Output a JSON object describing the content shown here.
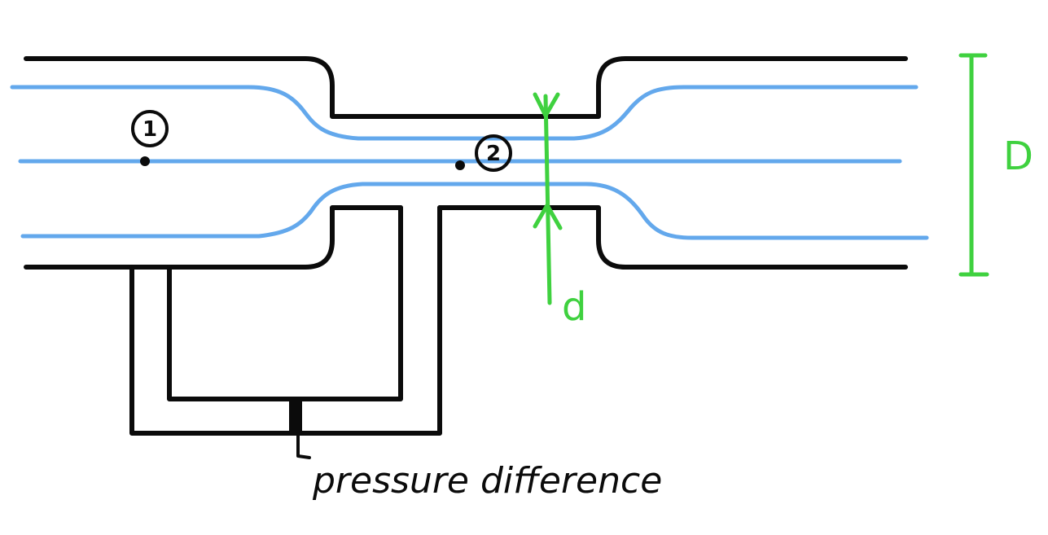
{
  "points": {
    "point_1": "1",
    "point_2": "2"
  },
  "dimensions": {
    "outer_diameter": "D",
    "throat_diameter": "d"
  },
  "annotation": {
    "pressure_label": "pressure difference"
  },
  "colors": {
    "pipe": "#0b0b0b",
    "streamline": "#63a8ec",
    "dimension": "#3fd13f"
  }
}
